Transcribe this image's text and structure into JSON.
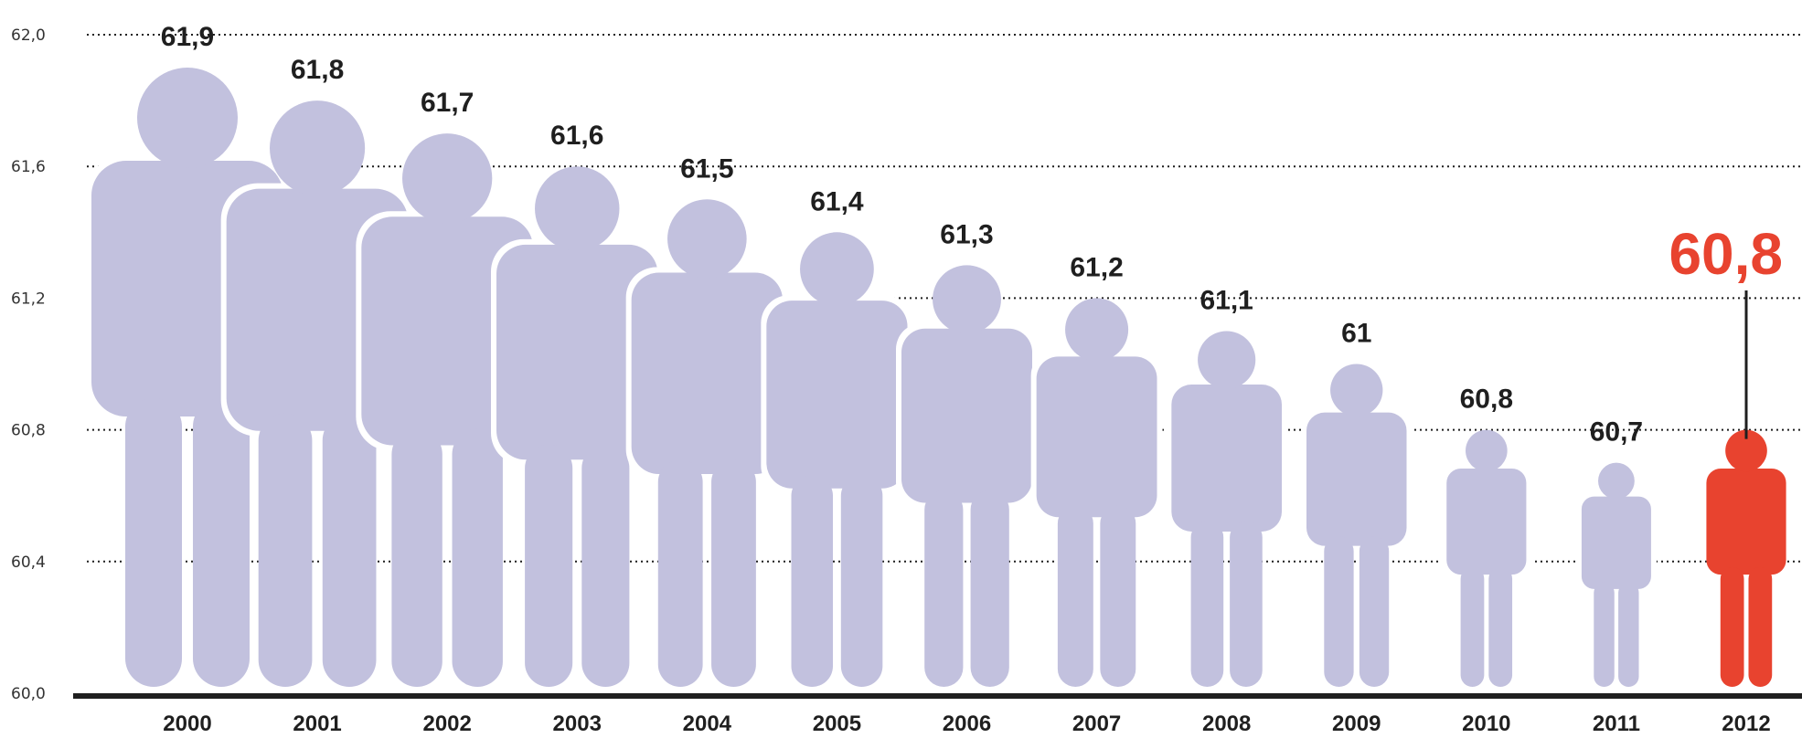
{
  "chart_data": {
    "type": "bar",
    "categories": [
      "2000",
      "2001",
      "2002",
      "2003",
      "2004",
      "2005",
      "2006",
      "2007",
      "2008",
      "2009",
      "2010",
      "2011",
      "2012"
    ],
    "values": [
      61.9,
      61.8,
      61.7,
      61.6,
      61.5,
      61.4,
      61.3,
      61.2,
      61.1,
      61.0,
      60.8,
      60.7,
      60.8
    ],
    "value_labels": [
      "61,9",
      "61,8",
      "61,7",
      "61,6",
      "61,5",
      "61,4",
      "61,3",
      "61,2",
      "61,1",
      "61",
      "60,8",
      "60,7",
      "60,8"
    ],
    "ylim": [
      60.0,
      62.0
    ],
    "yticks": [
      60.0,
      60.4,
      60.8,
      61.2,
      61.6,
      62.0
    ],
    "ytick_labels": [
      "60,0",
      "60,4",
      "60,8",
      "61,2",
      "61,6",
      "62,0"
    ],
    "grid": true,
    "mark_shape": "person-silhouette",
    "highlight_index": 12,
    "colors": {
      "bar": "#c2c1de",
      "highlight": "#e8432f",
      "axis": "#1f1f1f",
      "text": "#1f1f1f"
    }
  }
}
